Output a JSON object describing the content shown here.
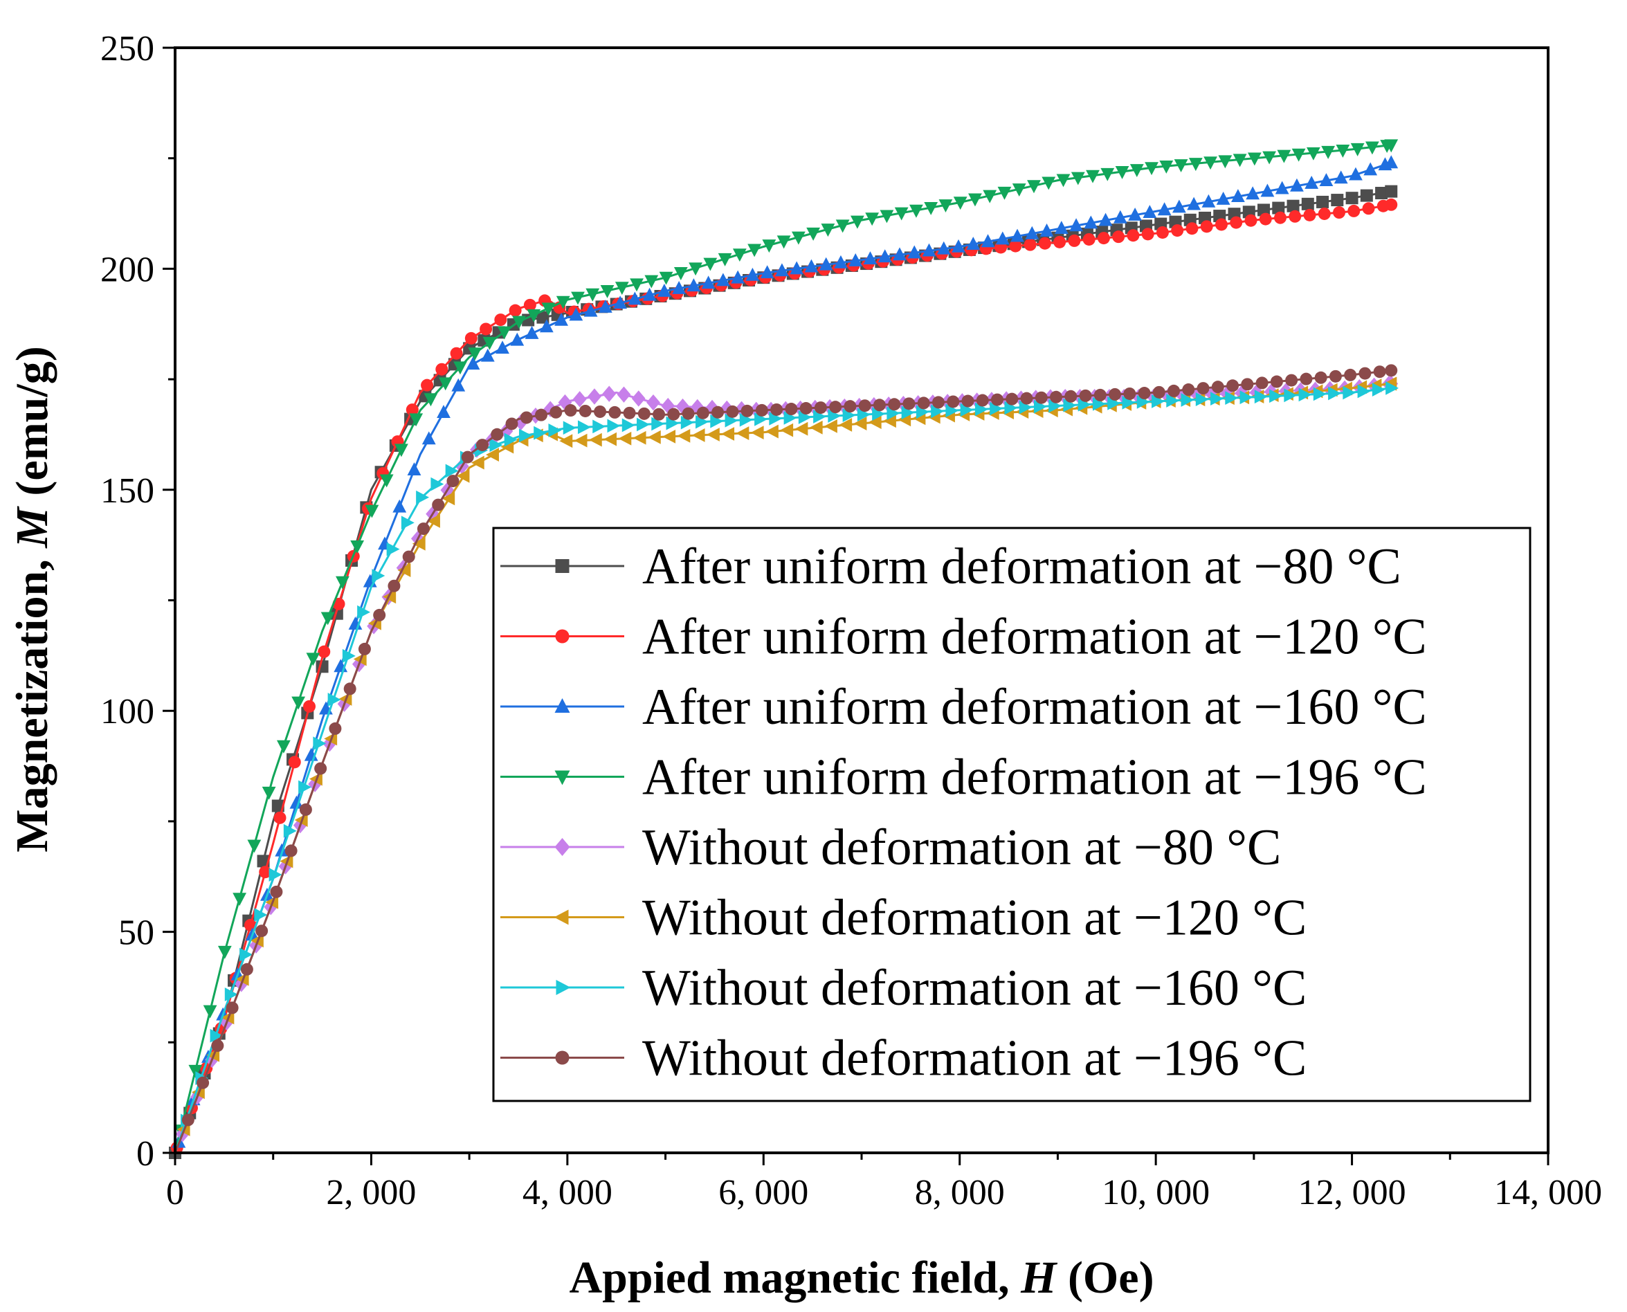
{
  "chart_data": {
    "type": "line",
    "title": "",
    "xlabel": {
      "prefix": "Appied magnetic field, ",
      "symbol": "H",
      "suffix": " (Oe)"
    },
    "ylabel": {
      "prefix": "Magnetization, ",
      "symbol": "M",
      "suffix": " (emu/g)"
    },
    "xlim": [
      0,
      14000
    ],
    "ylim": [
      0,
      250
    ],
    "x_ticks": [
      0,
      2000,
      4000,
      6000,
      8000,
      10000,
      12000,
      14000
    ],
    "x_tick_labels": [
      "0",
      "2, 000",
      "4, 000",
      "6, 000",
      "8, 000",
      "10, 000",
      "12, 000",
      "14, 000"
    ],
    "y_ticks": [
      0,
      50,
      100,
      150,
      200,
      250
    ],
    "y_tick_labels": [
      "0",
      "50",
      "100",
      "150",
      "200",
      "250"
    ],
    "legend_position": "bottom-right",
    "series": [
      {
        "name": "After uniform deformation at −80 °C",
        "color": "#4d4d4d",
        "marker": "square",
        "points": [
          [
            0,
            0
          ],
          [
            500,
            30
          ],
          [
            1000,
            75
          ],
          [
            1500,
            110
          ],
          [
            2000,
            150
          ],
          [
            2500,
            170
          ],
          [
            3000,
            182
          ],
          [
            3500,
            188
          ],
          [
            4000,
            190
          ],
          [
            5000,
            194
          ],
          [
            6000,
            198
          ],
          [
            7000,
            201
          ],
          [
            8000,
            204
          ],
          [
            9000,
            207
          ],
          [
            10000,
            210
          ],
          [
            11000,
            213
          ],
          [
            12000,
            216
          ],
          [
            12400,
            217.5
          ]
        ]
      },
      {
        "name": "After uniform deformation at −120 °C",
        "color": "#ff2a2a",
        "marker": "circle",
        "points": [
          [
            0,
            0
          ],
          [
            500,
            30
          ],
          [
            1000,
            70
          ],
          [
            1500,
            112
          ],
          [
            2000,
            148
          ],
          [
            2500,
            172
          ],
          [
            3000,
            184
          ],
          [
            3500,
            191
          ],
          [
            3800,
            193
          ],
          [
            4000,
            190
          ],
          [
            5000,
            194
          ],
          [
            6000,
            198
          ],
          [
            7000,
            201
          ],
          [
            8000,
            204
          ],
          [
            9000,
            206
          ],
          [
            10000,
            208
          ],
          [
            11000,
            211
          ],
          [
            12000,
            213
          ],
          [
            12400,
            214.5
          ]
        ]
      },
      {
        "name": "After uniform deformation at −160 °C",
        "color": "#1f6fe0",
        "marker": "triangle-up",
        "points": [
          [
            0,
            0
          ],
          [
            500,
            32
          ],
          [
            1000,
            62
          ],
          [
            1500,
            98
          ],
          [
            2000,
            130
          ],
          [
            2500,
            158
          ],
          [
            3000,
            178
          ],
          [
            3500,
            184
          ],
          [
            4000,
            189
          ],
          [
            5000,
            195
          ],
          [
            6000,
            199
          ],
          [
            7000,
            202
          ],
          [
            8000,
            205
          ],
          [
            9000,
            209
          ],
          [
            10000,
            213
          ],
          [
            11000,
            217
          ],
          [
            12000,
            221
          ],
          [
            12400,
            224
          ]
        ]
      },
      {
        "name": "After uniform deformation at −196 °C",
        "color": "#12a65a",
        "marker": "triangle-down",
        "points": [
          [
            0,
            0
          ],
          [
            500,
            45
          ],
          [
            1000,
            85
          ],
          [
            1500,
            118
          ],
          [
            2000,
            145
          ],
          [
            2500,
            168
          ],
          [
            3000,
            180
          ],
          [
            3500,
            188
          ],
          [
            4000,
            193
          ],
          [
            5000,
            198
          ],
          [
            6000,
            205
          ],
          [
            7000,
            211
          ],
          [
            8000,
            215
          ],
          [
            9000,
            220
          ],
          [
            10000,
            223
          ],
          [
            11000,
            225
          ],
          [
            12000,
            227
          ],
          [
            12400,
            228
          ]
        ]
      },
      {
        "name": "Without deformation at −80 °C",
        "color": "#c77fea",
        "marker": "diamond",
        "points": [
          [
            0,
            0
          ],
          [
            500,
            28
          ],
          [
            1000,
            57
          ],
          [
            1500,
            88
          ],
          [
            2000,
            118
          ],
          [
            2500,
            140
          ],
          [
            3000,
            158
          ],
          [
            3500,
            165
          ],
          [
            4000,
            170
          ],
          [
            4500,
            172
          ],
          [
            5000,
            169
          ],
          [
            6000,
            168
          ],
          [
            7000,
            169
          ],
          [
            8000,
            170
          ],
          [
            9000,
            171
          ],
          [
            10000,
            171
          ],
          [
            11000,
            172
          ],
          [
            12000,
            173
          ],
          [
            12400,
            174
          ]
        ]
      },
      {
        "name": "Without deformation at −120 °C",
        "color": "#d49a1a",
        "marker": "triangle-left",
        "points": [
          [
            0,
            0
          ],
          [
            500,
            28
          ],
          [
            1000,
            57
          ],
          [
            1500,
            88
          ],
          [
            2000,
            118
          ],
          [
            2500,
            138
          ],
          [
            3000,
            155
          ],
          [
            3500,
            161
          ],
          [
            3800,
            163
          ],
          [
            4000,
            161
          ],
          [
            5000,
            162
          ],
          [
            6000,
            163
          ],
          [
            7000,
            165
          ],
          [
            8000,
            167
          ],
          [
            9000,
            168
          ],
          [
            10000,
            170
          ],
          [
            11000,
            171
          ],
          [
            12000,
            173
          ],
          [
            12400,
            174
          ]
        ]
      },
      {
        "name": "Without deformation at −160 °C",
        "color": "#1ec8d8",
        "marker": "triangle-right",
        "points": [
          [
            0,
            0
          ],
          [
            500,
            32
          ],
          [
            1000,
            62
          ],
          [
            1500,
            95
          ],
          [
            2000,
            128
          ],
          [
            2500,
            148
          ],
          [
            3000,
            158
          ],
          [
            3500,
            162
          ],
          [
            4000,
            164
          ],
          [
            5000,
            165
          ],
          [
            6000,
            166
          ],
          [
            7000,
            167
          ],
          [
            8000,
            168
          ],
          [
            9000,
            169
          ],
          [
            10000,
            170
          ],
          [
            11000,
            171
          ],
          [
            12000,
            172
          ],
          [
            12400,
            173
          ]
        ]
      },
      {
        "name": "Without deformation at −196 °C",
        "color": "#8b4a4a",
        "marker": "circle",
        "points": [
          [
            0,
            0
          ],
          [
            500,
            28
          ],
          [
            1000,
            57
          ],
          [
            1500,
            88
          ],
          [
            2000,
            118
          ],
          [
            2500,
            140
          ],
          [
            3000,
            158
          ],
          [
            3500,
            166
          ],
          [
            4000,
            168
          ],
          [
            5000,
            167
          ],
          [
            6000,
            168
          ],
          [
            7000,
            169
          ],
          [
            8000,
            170
          ],
          [
            9000,
            171
          ],
          [
            10000,
            172
          ],
          [
            11000,
            174
          ],
          [
            12000,
            176
          ],
          [
            12400,
            177
          ]
        ]
      }
    ]
  }
}
